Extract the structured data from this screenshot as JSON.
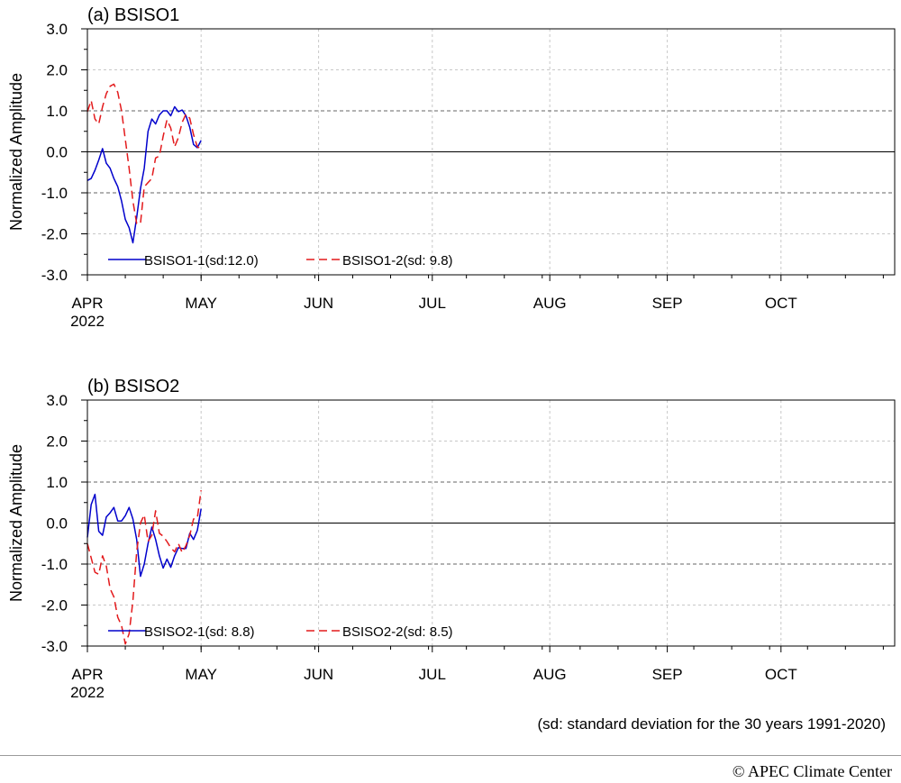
{
  "colors": {
    "series1": "#0000cc",
    "series2": "#e31a1c",
    "grid": "#c8c8c8",
    "refline": "#666666",
    "zeroline": "#000000"
  },
  "x_tick_labels": [
    "APR",
    "MAY",
    "JUN",
    "JUL",
    "AUG",
    "SEP",
    "OCT"
  ],
  "x_year_label": "2022",
  "y_tick_labels": [
    "3.0",
    "2.0",
    "1.0",
    "0.0",
    "-1.0",
    "-2.0",
    "-3.0"
  ],
  "footnote": "(sd: standard deviation for the 30 years 1991-2020)",
  "credit": "APEC Climate Center",
  "credit_symbol": "©",
  "chart_data": [
    {
      "type": "line",
      "title": "(a) BSISO1",
      "ylabel": "Normalized Amplitude",
      "ylim": [
        -3,
        3
      ],
      "x_unit": "days since Apr 1 2022",
      "xlim": [
        0,
        213
      ],
      "grid": true,
      "legend_position": "bottom-left",
      "series": [
        {
          "name": "BSISO1-1(sd:12.0)",
          "style": "solid",
          "color": "#0000cc",
          "x": [
            0,
            1,
            2,
            3,
            4,
            5,
            6,
            7,
            8,
            9,
            10,
            11,
            12,
            13,
            14,
            15,
            16,
            17,
            18,
            19,
            20,
            21,
            22,
            23,
            24,
            25,
            26,
            27,
            28,
            29,
            30
          ],
          "values": [
            -0.7,
            -0.65,
            -0.45,
            -0.2,
            0.08,
            -0.28,
            -0.4,
            -0.65,
            -0.85,
            -1.2,
            -1.65,
            -1.85,
            -2.22,
            -1.6,
            -0.9,
            -0.4,
            0.5,
            0.8,
            0.68,
            0.9,
            1.0,
            1.0,
            0.88,
            1.1,
            0.98,
            1.02,
            0.88,
            0.6,
            0.18,
            0.1,
            0.28
          ]
        },
        {
          "name": "BSISO1-2(sd: 9.8)",
          "style": "dashed",
          "color": "#e31a1c",
          "x": [
            0,
            1,
            2,
            3,
            4,
            5,
            6,
            7,
            8,
            9,
            10,
            11,
            12,
            13,
            14,
            15,
            16,
            17,
            18,
            19,
            20,
            21,
            22,
            23,
            24,
            25,
            26,
            27,
            28,
            29,
            30
          ],
          "values": [
            0.98,
            1.25,
            0.8,
            0.68,
            1.1,
            1.42,
            1.6,
            1.65,
            1.45,
            1.0,
            0.3,
            -0.4,
            -1.2,
            -1.75,
            -1.75,
            -0.85,
            -0.75,
            -0.65,
            -0.15,
            -0.1,
            0.38,
            0.78,
            0.58,
            0.12,
            0.35,
            0.72,
            0.92,
            0.82,
            0.42,
            0.12,
            0.08
          ]
        }
      ]
    },
    {
      "type": "line",
      "title": "(b) BSISO2",
      "ylabel": "Normalized Amplitude",
      "ylim": [
        -3,
        3
      ],
      "x_unit": "days since Apr 1 2022",
      "xlim": [
        0,
        213
      ],
      "grid": true,
      "legend_position": "bottom-left",
      "series": [
        {
          "name": "BSISO2-1(sd: 8.8)",
          "style": "solid",
          "color": "#0000cc",
          "x": [
            0,
            1,
            2,
            3,
            4,
            5,
            6,
            7,
            8,
            9,
            10,
            11,
            12,
            13,
            14,
            15,
            16,
            17,
            18,
            19,
            20,
            21,
            22,
            23,
            24,
            25,
            26,
            27,
            28,
            29,
            30
          ],
          "values": [
            -0.35,
            0.45,
            0.7,
            -0.2,
            -0.3,
            0.15,
            0.25,
            0.38,
            0.05,
            0.05,
            0.18,
            0.38,
            0.1,
            -0.4,
            -1.3,
            -1.0,
            -0.5,
            -0.1,
            -0.4,
            -0.8,
            -1.1,
            -0.88,
            -1.08,
            -0.8,
            -0.6,
            -0.62,
            -0.62,
            -0.25,
            -0.4,
            -0.18,
            0.35
          ]
        },
        {
          "name": "BSISO2-2(sd: 8.5)",
          "style": "dashed",
          "color": "#e31a1c",
          "x": [
            0,
            1,
            2,
            3,
            4,
            5,
            6,
            7,
            8,
            9,
            10,
            11,
            12,
            13,
            14,
            15,
            16,
            17,
            18,
            19,
            20,
            21,
            22,
            23,
            24,
            25,
            26,
            27,
            28,
            29,
            30
          ],
          "values": [
            -0.5,
            -0.85,
            -1.2,
            -1.25,
            -0.8,
            -1.05,
            -1.6,
            -1.8,
            -2.3,
            -2.5,
            -2.95,
            -2.7,
            -1.9,
            -0.7,
            0.0,
            0.2,
            -0.45,
            -0.3,
            0.3,
            -0.25,
            -0.32,
            -0.45,
            -0.6,
            -0.7,
            -0.5,
            -0.72,
            -0.55,
            -0.3,
            0.1,
            0.12,
            0.8
          ]
        }
      ]
    }
  ]
}
